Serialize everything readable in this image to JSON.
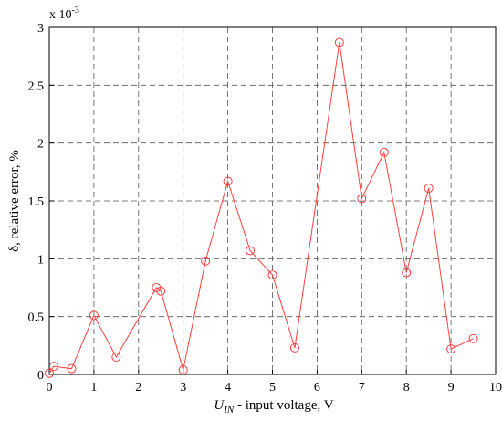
{
  "chart_data": {
    "type": "line",
    "y_exponent": {
      "base": "x 10",
      "power": "-3"
    },
    "x_label": {
      "main": "U",
      "sub": "IN",
      "rest": " - input voltage, V"
    },
    "y_label": "δ, relative error, %",
    "x": [
      0,
      0.1,
      0.5,
      1,
      1.5,
      2.4,
      2.5,
      3,
      3.5,
      4,
      4.5,
      5,
      5.5,
      6.5,
      7,
      7.5,
      8,
      8.5,
      9,
      9.5
    ],
    "series": [
      {
        "color": "#ff4040",
        "marker": "circle",
        "values": [
          0.01,
          0.07,
          0.05,
          0.51,
          0.15,
          0.75,
          0.72,
          0.04,
          0.98,
          1.67,
          1.07,
          0.86,
          0.23,
          2.87,
          1.52,
          1.92,
          0.88,
          1.61,
          0.22,
          0.31
        ]
      }
    ],
    "xlim": [
      0,
      10
    ],
    "ylim": [
      0,
      3
    ],
    "xticks": [
      0,
      1,
      2,
      3,
      4,
      5,
      6,
      7,
      8,
      9,
      10
    ],
    "yticks": [
      0,
      0.5,
      1,
      1.5,
      2,
      2.5,
      3
    ],
    "grid": true
  }
}
